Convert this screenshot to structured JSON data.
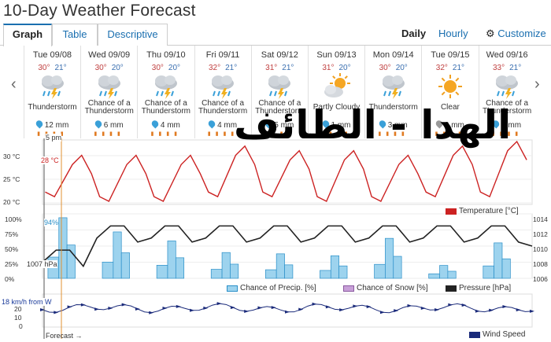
{
  "title": "10-Day Weather Forecast",
  "tabs": [
    {
      "label": "Graph",
      "active": true
    },
    {
      "label": "Table",
      "active": false
    },
    {
      "label": "Descriptive",
      "active": false
    }
  ],
  "view_links": {
    "daily": "Daily",
    "hourly": "Hourly",
    "customize": "Customize"
  },
  "days": [
    {
      "date": "Tue 09/08",
      "hi": "30°",
      "lo": "21°",
      "icon": "thunderstorm-icon",
      "condition": "Thunderstorm",
      "precip": "12 mm",
      "drop": "blue"
    },
    {
      "date": "Wed 09/09",
      "hi": "30°",
      "lo": "20°",
      "icon": "thunderstorm-icon",
      "condition": "Chance of a Thunderstorm",
      "precip": "6 mm",
      "drop": "blue"
    },
    {
      "date": "Thu 09/10",
      "hi": "30°",
      "lo": "20°",
      "icon": "thunderstorm-icon",
      "condition": "Chance of a Thunderstorm",
      "precip": "4 mm",
      "drop": "blue"
    },
    {
      "date": "Fri 09/11",
      "hi": "32°",
      "lo": "21°",
      "icon": "thunderstorm-icon",
      "condition": "Chance of a Thunderstorm",
      "precip": "4 mm",
      "drop": "blue"
    },
    {
      "date": "Sat 09/12",
      "hi": "31°",
      "lo": "21°",
      "icon": "thunderstorm-icon",
      "condition": "Chance of a Thunderstorm",
      "precip": "5 mm",
      "drop": "blue"
    },
    {
      "date": "Sun 09/13",
      "hi": "31°",
      "lo": "20°",
      "icon": "partly-cloudy-icon",
      "condition": "Partly Cloudy",
      "precip": "1 mm",
      "drop": "blue"
    },
    {
      "date": "Mon 09/14",
      "hi": "30°",
      "lo": "20°",
      "icon": "thunderstorm-icon",
      "condition": "Thunderstorm",
      "precip": "3 mm",
      "drop": "blue"
    },
    {
      "date": "Tue 09/15",
      "hi": "32°",
      "lo": "21°",
      "icon": "clear-sun-icon",
      "condition": "Clear",
      "precip": "0 mm",
      "drop": "gray"
    },
    {
      "date": "Wed 09/16",
      "hi": "33°",
      "lo": "21°",
      "icon": "thunderstorm-icon",
      "condition": "Chance of a Thunderstorm",
      "precip": "2 mm",
      "drop": "blue"
    }
  ],
  "chart_labels": {
    "now_time": "5 pm",
    "now_temp": "28 °C",
    "now_precip": "94%",
    "now_pressure": "1007 hPa",
    "now_wind": "18 km/h from W",
    "forecast_label": "Forecast →",
    "overlay_text": "الهدا - الطائف"
  },
  "chart_data": [
    {
      "type": "line",
      "series": [
        {
          "name": "Temperature [°C]",
          "color": "#cc2222"
        }
      ],
      "y_ticks": [
        "30 °C",
        "25 °C",
        "20 °C"
      ],
      "ylim": [
        20,
        32
      ],
      "days_hi": [
        30,
        30,
        30,
        32,
        31,
        31,
        30,
        32,
        33
      ],
      "days_lo": [
        21,
        20,
        20,
        21,
        21,
        20,
        20,
        21,
        21
      ]
    },
    {
      "type": "area",
      "series": [
        {
          "name": "Chance of Precip. [%]",
          "color": "#9dd3ee"
        },
        {
          "name": "Chance of Snow [%]",
          "color": "#c8a0d8"
        },
        {
          "name": "Pressure [hPa]",
          "color": "#222222"
        }
      ],
      "y_ticks_left": [
        "100%",
        "75%",
        "50%",
        "25%",
        "0%"
      ],
      "y_ticks_right": [
        "1014",
        "1012",
        "1010",
        "1008",
        "1006"
      ],
      "precip_peaks": [
        94,
        72,
        58,
        40,
        38,
        35,
        62,
        20,
        55
      ],
      "pressure_range": [
        1006,
        1014
      ]
    },
    {
      "type": "line",
      "series": [
        {
          "name": "Wind Speed",
          "color": "#1a2a7a"
        }
      ],
      "y_ticks": [
        "20",
        "10",
        "0"
      ],
      "ylim": [
        0,
        20
      ]
    }
  ]
}
